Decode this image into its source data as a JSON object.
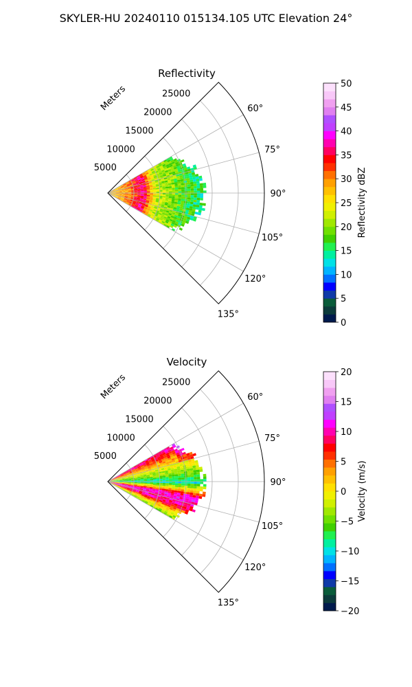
{
  "figure_title": "SKYLER-HU  20240110  015134.105 UTC Elevation 24°",
  "chart_data": [
    {
      "type": "heatmap",
      "projection": "polar-sector",
      "title": "Reflectivity",
      "radial_axis_label": "Meters",
      "radial_range": [
        0,
        30000
      ],
      "radial_ticks": [
        "5000",
        "10000",
        "15000",
        "20000",
        "25000"
      ],
      "azimuth_range_deg": [
        45,
        135
      ],
      "azimuth_ticks": [
        "60°",
        "75°",
        "90°",
        "105°",
        "120°",
        "135°"
      ],
      "grid": true,
      "colorbar": {
        "label": "Reflectivity dBZ",
        "range": [
          0,
          50
        ],
        "ticks": [
          "0",
          "5",
          "10",
          "15",
          "20",
          "25",
          "30",
          "35",
          "40",
          "45",
          "50"
        ],
        "colors": [
          "#001a4d",
          "#0c3b3b",
          "#0a5c3a",
          "#0f3aa8",
          "#0000ff",
          "#0070ff",
          "#00b4ff",
          "#00e1e6",
          "#00f0a0",
          "#20f050",
          "#40d000",
          "#70e000",
          "#a0e800",
          "#d0f000",
          "#f0f000",
          "#ffe000",
          "#ffc000",
          "#ffa000",
          "#ff7000",
          "#ff3000",
          "#ff0000",
          "#ff0060",
          "#ff00b0",
          "#ff00ff",
          "#c040ff",
          "#b050ff",
          "#e080f0",
          "#f0a0f0",
          "#f8c8f8",
          "#fce0fc"
        ]
      },
      "field_profile": [
        {
          "range_m": 1500,
          "value": 28
        },
        {
          "range_m": 4000,
          "value": 30
        },
        {
          "range_m": 6500,
          "value": 37
        },
        {
          "range_m": 9000,
          "value": 22
        },
        {
          "range_m": 12000,
          "value": 20
        },
        {
          "range_m": 15000,
          "value": 17
        },
        {
          "range_m": 18000,
          "value": 15
        }
      ],
      "echo_extent": {
        "min_range_m": 0,
        "max_range_m": 19000,
        "azimuth_deg": [
          60,
          120
        ]
      }
    },
    {
      "type": "heatmap",
      "projection": "polar-sector",
      "title": "Velocity",
      "radial_axis_label": "Meters",
      "radial_range": [
        0,
        30000
      ],
      "radial_ticks": [
        "5000",
        "10000",
        "15000",
        "20000",
        "25000"
      ],
      "azimuth_range_deg": [
        45,
        135
      ],
      "azimuth_ticks": [
        "60°",
        "75°",
        "90°",
        "105°",
        "120°",
        "135°"
      ],
      "grid": true,
      "colorbar": {
        "label": "Velocity (m/s)",
        "range": [
          -20,
          20
        ],
        "ticks": [
          "−20",
          "−15",
          "−10",
          "−5",
          "0",
          "5",
          "10",
          "15",
          "20"
        ],
        "colors": [
          "#001a4d",
          "#0c3b3b",
          "#0a5c3a",
          "#0f3aa8",
          "#0000ff",
          "#0070ff",
          "#00b4ff",
          "#00e1e6",
          "#00f0a0",
          "#20f050",
          "#40d000",
          "#70e000",
          "#a0e800",
          "#d0f000",
          "#f0f000",
          "#ffe000",
          "#ffc000",
          "#ffa000",
          "#ff7000",
          "#ff3000",
          "#ff0000",
          "#ff0060",
          "#ff00b0",
          "#ff00ff",
          "#c040ff",
          "#b050ff",
          "#e080f0",
          "#f0a0f0",
          "#f8c8f8",
          "#fce0fc"
        ]
      },
      "field_profile": [
        {
          "azimuth_deg": 62,
          "value": 9
        },
        {
          "azimuth_deg": 70,
          "value": 3
        },
        {
          "azimuth_deg": 80,
          "value": -3
        },
        {
          "azimuth_deg": 90,
          "value": -9
        },
        {
          "azimuth_deg": 100,
          "value": 11
        },
        {
          "azimuth_deg": 108,
          "value": 9
        },
        {
          "azimuth_deg": 118,
          "value": -4
        }
      ],
      "echo_extent": {
        "min_range_m": 0,
        "max_range_m": 19000,
        "azimuth_deg": [
          60,
          120
        ]
      }
    }
  ]
}
